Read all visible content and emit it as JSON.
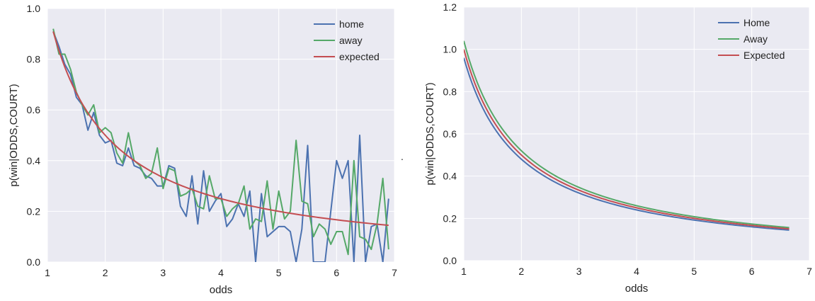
{
  "colors": {
    "plot_bg": "#eaeaf2",
    "grid": "#ffffff",
    "text": "#222222",
    "home": "#4c72b0",
    "away": "#55a868",
    "expected": "#c44e52"
  },
  "stray_mark": ".",
  "chart_data": [
    {
      "type": "line",
      "title": "",
      "xlabel": "odds",
      "ylabel": "p(win|ODDS,COURT)",
      "xlim": [
        1,
        7
      ],
      "ylim": [
        0,
        1.0
      ],
      "xticks": [
        1,
        2,
        3,
        4,
        5,
        6,
        7
      ],
      "yticks": [
        0.0,
        0.2,
        0.4,
        0.6,
        0.8,
        1.0
      ],
      "xtick_labels": [
        "1",
        "2",
        "3",
        "4",
        "5",
        "6",
        "7"
      ],
      "ytick_labels": [
        "0.0",
        "0.2",
        "0.4",
        "0.6",
        "0.8",
        "1.0"
      ],
      "grid": true,
      "legend_position": "top-right",
      "series": [
        {
          "name": "home",
          "color": "#4c72b0",
          "x": [
            1.1,
            1.2,
            1.3,
            1.4,
            1.5,
            1.6,
            1.7,
            1.8,
            1.9,
            2.0,
            2.1,
            2.2,
            2.3,
            2.4,
            2.5,
            2.6,
            2.7,
            2.8,
            2.9,
            3.0,
            3.1,
            3.2,
            3.3,
            3.4,
            3.5,
            3.6,
            3.7,
            3.8,
            3.9,
            4.0,
            4.1,
            4.2,
            4.3,
            4.4,
            4.5,
            4.6,
            4.7,
            4.8,
            4.9,
            5.0,
            5.1,
            5.2,
            5.3,
            5.4,
            5.5,
            5.6,
            5.7,
            5.8,
            5.9,
            6.0,
            6.1,
            6.2,
            6.3,
            6.4,
            6.5,
            6.6,
            6.7,
            6.8,
            6.9
          ],
          "y": [
            0.91,
            0.85,
            0.78,
            0.74,
            0.65,
            0.62,
            0.52,
            0.59,
            0.5,
            0.47,
            0.48,
            0.39,
            0.38,
            0.45,
            0.38,
            0.37,
            0.34,
            0.33,
            0.3,
            0.3,
            0.38,
            0.37,
            0.22,
            0.18,
            0.34,
            0.15,
            0.36,
            0.2,
            0.24,
            0.27,
            0.14,
            0.17,
            0.23,
            0.18,
            0.28,
            0.0,
            0.27,
            0.1,
            0.12,
            0.14,
            0.14,
            0.12,
            0.0,
            0.13,
            0.46,
            0.0,
            0.0,
            0.0,
            0.2,
            0.4,
            0.33,
            0.4,
            0.0,
            0.5,
            0.0,
            0.14,
            0.15,
            0.0,
            0.25
          ]
        },
        {
          "name": "away",
          "color": "#55a868",
          "x": [
            1.1,
            1.2,
            1.3,
            1.4,
            1.5,
            1.6,
            1.7,
            1.8,
            1.9,
            2.0,
            2.1,
            2.2,
            2.3,
            2.4,
            2.5,
            2.6,
            2.7,
            2.8,
            2.9,
            3.0,
            3.1,
            3.2,
            3.3,
            3.4,
            3.5,
            3.6,
            3.7,
            3.8,
            3.9,
            4.0,
            4.1,
            4.2,
            4.3,
            4.4,
            4.5,
            4.6,
            4.7,
            4.8,
            4.9,
            5.0,
            5.1,
            5.2,
            5.3,
            5.4,
            5.5,
            5.6,
            5.7,
            5.8,
            5.9,
            6.0,
            6.1,
            6.2,
            6.3,
            6.4,
            6.5,
            6.6,
            6.7,
            6.8,
            6.9
          ],
          "y": [
            0.92,
            0.82,
            0.82,
            0.76,
            0.67,
            0.62,
            0.58,
            0.62,
            0.51,
            0.53,
            0.51,
            0.43,
            0.39,
            0.51,
            0.4,
            0.38,
            0.33,
            0.35,
            0.45,
            0.29,
            0.37,
            0.36,
            0.26,
            0.27,
            0.29,
            0.22,
            0.21,
            0.34,
            0.25,
            0.25,
            0.18,
            0.21,
            0.23,
            0.3,
            0.13,
            0.17,
            0.16,
            0.32,
            0.13,
            0.28,
            0.17,
            0.2,
            0.48,
            0.24,
            0.23,
            0.1,
            0.15,
            0.13,
            0.07,
            0.12,
            0.12,
            0.03,
            0.4,
            0.1,
            0.09,
            0.05,
            0.15,
            0.33,
            0.05
          ]
        },
        {
          "name": "expected",
          "color": "#c44e52",
          "function": "1/x",
          "x_range": [
            1.1,
            6.9
          ]
        }
      ]
    },
    {
      "type": "line",
      "title": "",
      "xlabel": "odds",
      "ylabel": "p(win|ODDS,COURT)",
      "xlim": [
        1,
        7
      ],
      "ylim": [
        0,
        1.2
      ],
      "xticks": [
        1,
        2,
        3,
        4,
        5,
        6,
        7
      ],
      "yticks": [
        0.0,
        0.2,
        0.4,
        0.6,
        0.8,
        1.0,
        1.2
      ],
      "xtick_labels": [
        "1",
        "2",
        "3",
        "4",
        "5",
        "6",
        "7"
      ],
      "ytick_labels": [
        "0.0",
        "0.2",
        "0.4",
        "0.6",
        "0.8",
        "1.0",
        "1.2"
      ],
      "grid": true,
      "legend_position": "top-right",
      "series": [
        {
          "name": "Home",
          "color": "#4c72b0",
          "function": "0.96/x",
          "x_range": [
            1.0,
            6.65
          ]
        },
        {
          "name": "Away",
          "color": "#55a868",
          "function": "1.04/x",
          "x_range": [
            1.0,
            6.65
          ]
        },
        {
          "name": "Expected",
          "color": "#c44e52",
          "legend_label": " Expected",
          "function": "1/x",
          "x_range": [
            1.0,
            6.65
          ]
        }
      ]
    }
  ]
}
